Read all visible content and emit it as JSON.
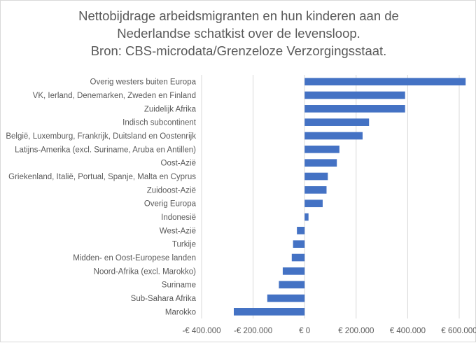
{
  "chart_data": {
    "type": "bar",
    "orientation": "horizontal",
    "title_lines": [
      "Nettobijdrage arbeidsmigranten en hun kinderen aan de",
      "Nederlandse schatkist over de levensloop.",
      "Bron: CBS-microdata/Grenzeloze  Verzorgingsstaat."
    ],
    "categories": [
      "Overig westers buiten Europa",
      "VK, Ierland, Denemarken, Zweden en Finland",
      "Zuidelijk Afrika",
      "Indisch subcontinent",
      "België, Luxemburg, Frankrijk, Duitsland en Oostenrijk",
      "Latijns-Amerika (excl. Suriname, Aruba en Antillen)",
      "Oost-Azië",
      "Griekenland, Italië, Portual, Spanje, Malta en Cyprus",
      "Zuidoost-Azië",
      "Overig Europa",
      "Indonesië",
      "West-Azië",
      "Turkije",
      "Midden- en Oost-Europese landen",
      "Noord-Afrika (excl. Marokko)",
      "Suriname",
      "Sub-Sahara Afrika",
      "Marokko"
    ],
    "values": [
      625000,
      390000,
      390000,
      250000,
      225000,
      135000,
      125000,
      90000,
      85000,
      70000,
      15000,
      -30000,
      -45000,
      -50000,
      -85000,
      -100000,
      -145000,
      -275000
    ],
    "xlim": [
      -400000,
      600000
    ],
    "xticks": [
      -400000,
      -200000,
      0,
      200000,
      400000,
      600000
    ],
    "xtick_labels": [
      "-€ 400.000",
      "-€ 200.000",
      "€ 0",
      "€ 200.000",
      "€ 400.000",
      "€ 600.000"
    ],
    "bar_color": "#4472c4",
    "grid": "vertical",
    "legend": "none"
  }
}
